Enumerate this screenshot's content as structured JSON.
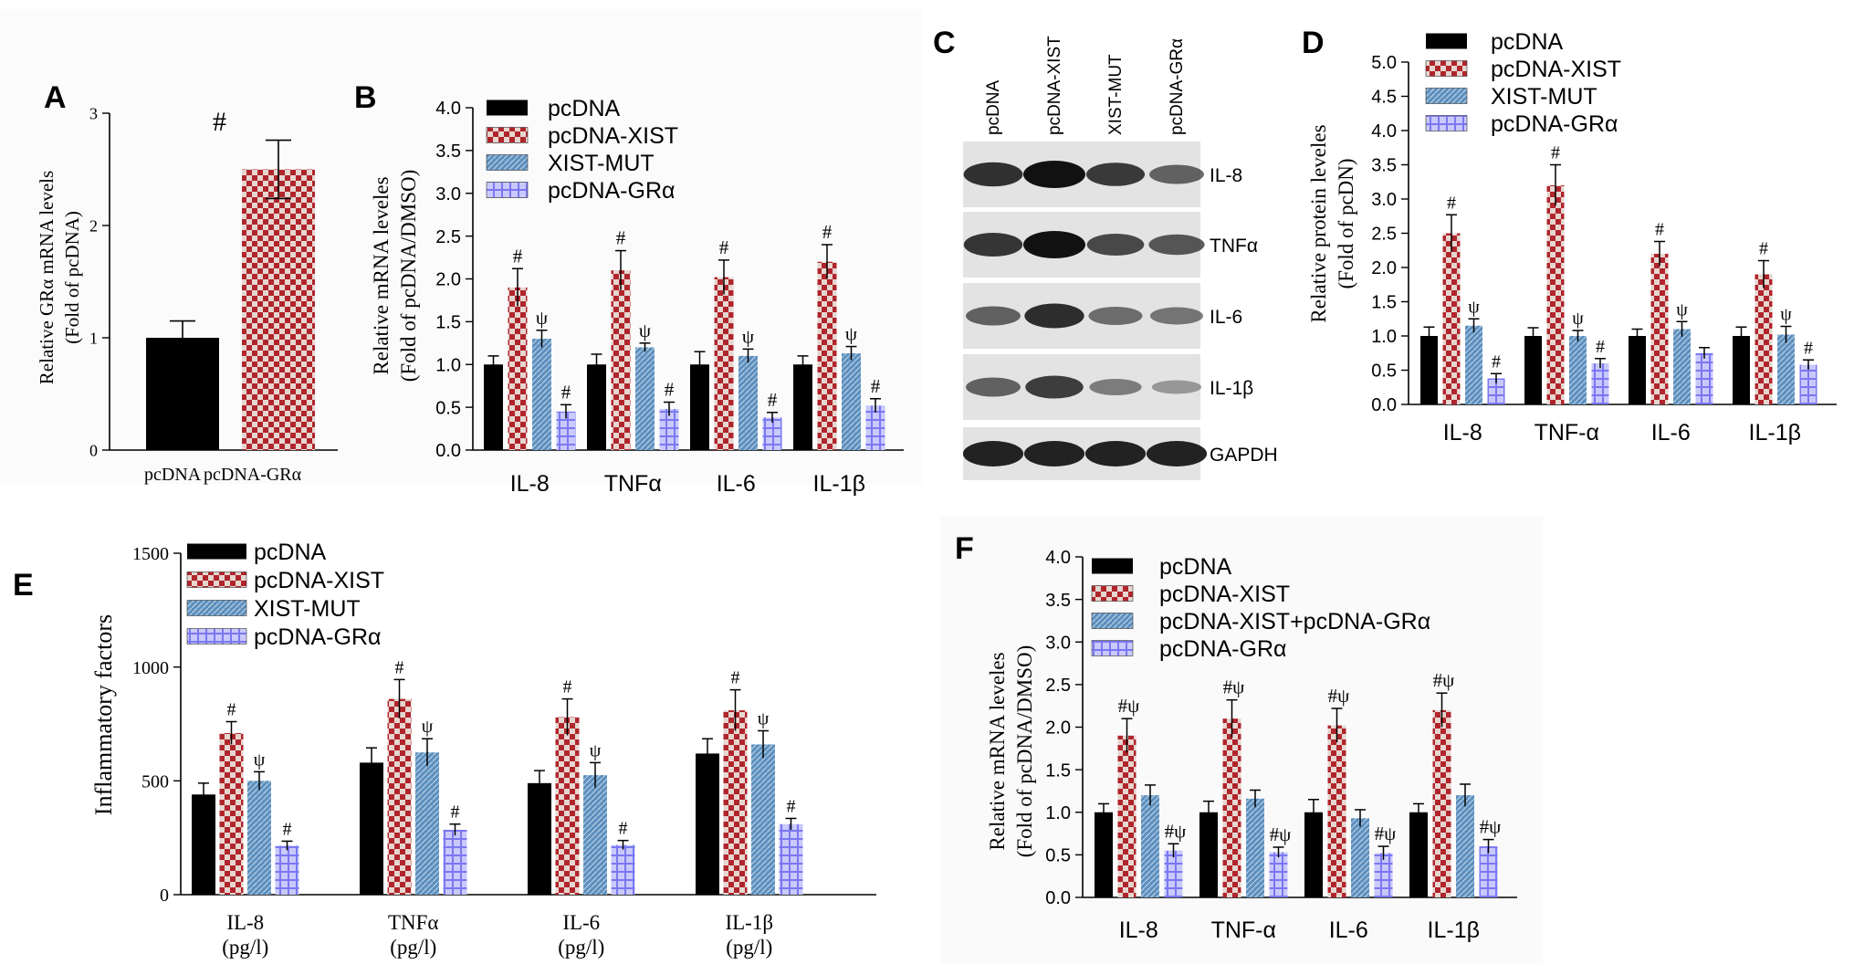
{
  "colors": {
    "pcdna": "#000000",
    "xist": "#b0252c",
    "xist_light": "#e6d6d0",
    "mut": "#5b8fbe",
    "mut_light": "#bcd0e4",
    "gra": "#7a78f2",
    "gra_light": "#c9c9fb",
    "combo": "#5b8fbe"
  },
  "panels": {
    "A": {
      "letter": "A",
      "ylabel_line1": "Relative GRα mRNA levels",
      "ylabel_line2": "(Fold of pcDNA)",
      "annotation": "#"
    },
    "B": {
      "letter": "B",
      "ylabel_line1": "Relative mRNA leveles",
      "ylabel_line2": "(Fold of pcDNA/DMSO)"
    },
    "C": {
      "letter": "C",
      "lanes": [
        "pcDNA",
        "pcDNA-XIST",
        "XIST-MUT",
        "pcDNA-GRα"
      ],
      "rows": [
        {
          "label": "IL-8",
          "intensity": [
            0.82,
            1.0,
            0.78,
            0.55
          ]
        },
        {
          "label": "TNFα",
          "intensity": [
            0.8,
            1.0,
            0.7,
            0.62
          ]
        },
        {
          "label": "IL-6",
          "intensity": [
            0.55,
            0.85,
            0.5,
            0.45
          ]
        },
        {
          "label": "IL-1β",
          "intensity": [
            0.55,
            0.75,
            0.4,
            0.25
          ]
        },
        {
          "label": "GAPDH",
          "intensity": [
            0.9,
            0.9,
            0.9,
            0.9
          ]
        }
      ]
    },
    "D": {
      "letter": "D",
      "ylabel_line1": "Relative protein leveles",
      "ylabel_line2": "(Fold of pcDN)"
    },
    "E": {
      "letter": "E",
      "ylabel_line1": "Inflammatory factors"
    },
    "F": {
      "letter": "F",
      "ylabel_line1": "Relative mRNA leveles",
      "ylabel_line2": "(Fold of pcDNA/DMSO)"
    }
  },
  "chart_data": [
    {
      "panel": "A",
      "type": "bar",
      "categories": [
        "pcDNA",
        "pcDNA-GRα"
      ],
      "series": [
        {
          "values": [
            1.0,
            2.5
          ],
          "errors": [
            0.15,
            0.26
          ]
        }
      ],
      "ylim": [
        0,
        3
      ],
      "yticks": [
        "0",
        "1",
        "2",
        "3"
      ],
      "ylabel": "Relative GRα mRNA levels (Fold of pcDNA)",
      "annotations": [
        "#"
      ]
    },
    {
      "panel": "B",
      "type": "bar",
      "categories": [
        "IL-8",
        "TNFα",
        "IL-6",
        "IL-1β"
      ],
      "series": [
        {
          "name": "pcDNA",
          "values": [
            1.0,
            1.0,
            1.0,
            1.0
          ],
          "errors": [
            0.1,
            0.12,
            0.15,
            0.1
          ],
          "marks": [
            "",
            "",
            "",
            ""
          ]
        },
        {
          "name": "pcDNA-XIST",
          "values": [
            1.9,
            2.1,
            2.02,
            2.2
          ],
          "errors": [
            0.22,
            0.23,
            0.2,
            0.2
          ],
          "marks": [
            "#",
            "#",
            "#",
            "#"
          ]
        },
        {
          "name": "XIST-MUT",
          "values": [
            1.3,
            1.2,
            1.1,
            1.13
          ],
          "errors": [
            0.1,
            0.05,
            0.08,
            0.08
          ],
          "marks": [
            "ψ",
            "ψ",
            "ψ",
            "ψ"
          ]
        },
        {
          "name": "pcDNA-GRα",
          "values": [
            0.45,
            0.48,
            0.38,
            0.52
          ],
          "errors": [
            0.08,
            0.08,
            0.06,
            0.08
          ],
          "marks": [
            "#",
            "#",
            "#",
            "#"
          ]
        }
      ],
      "ylim": [
        0,
        4
      ],
      "yticks": [
        "0.0",
        "0.5",
        "1.0",
        "1.5",
        "2.0",
        "2.5",
        "3.0",
        "3.5",
        "4.0"
      ],
      "ylabel": "Relative mRNA leveles (Fold of pcDNA/DMSO)"
    },
    {
      "panel": "D",
      "type": "bar",
      "categories": [
        "IL-8",
        "TNF-α",
        "IL-6",
        "IL-1β"
      ],
      "series": [
        {
          "name": "pcDNA",
          "values": [
            1.0,
            1.0,
            1.0,
            1.0
          ],
          "errors": [
            0.13,
            0.12,
            0.1,
            0.13
          ],
          "marks": [
            "",
            "",
            "",
            ""
          ]
        },
        {
          "name": "pcDNA-XIST",
          "values": [
            2.5,
            3.2,
            2.2,
            1.9
          ],
          "errors": [
            0.27,
            0.3,
            0.18,
            0.2
          ],
          "marks": [
            "#",
            "#",
            "#",
            "#"
          ]
        },
        {
          "name": "XIST-MUT",
          "values": [
            1.15,
            1.0,
            1.1,
            1.02
          ],
          "errors": [
            0.1,
            0.08,
            0.11,
            0.12
          ],
          "marks": [
            "ψ",
            "ψ",
            "ψ",
            "ψ"
          ]
        },
        {
          "name": "pcDNA-GRα",
          "values": [
            0.38,
            0.6,
            0.75,
            0.58
          ],
          "errors": [
            0.07,
            0.07,
            0.08,
            0.07
          ],
          "marks": [
            "#",
            "#",
            "",
            "#"
          ]
        }
      ],
      "ylim": [
        0,
        5
      ],
      "yticks": [
        "0.0",
        "0.5",
        "1.0",
        "1.5",
        "2.0",
        "2.5",
        "3.0",
        "3.5",
        "4.0",
        "4.5",
        "5.0"
      ],
      "ylabel": "Relative protein leveles (Fold of pcDN)"
    },
    {
      "panel": "E",
      "type": "bar",
      "categories": [
        "IL-8",
        "TNFα",
        "IL-6",
        "IL-1β"
      ],
      "category_units": [
        "(pg/l)",
        "(pg/l)",
        "(pg/l)",
        "(pg/l)"
      ],
      "series": [
        {
          "name": "pcDNA",
          "values": [
            440,
            580,
            490,
            620
          ],
          "errors": [
            50,
            65,
            55,
            65
          ],
          "marks": [
            "",
            "",
            "",
            ""
          ]
        },
        {
          "name": "pcDNA-XIST",
          "values": [
            710,
            860,
            780,
            810
          ],
          "errors": [
            50,
            85,
            80,
            90
          ],
          "marks": [
            "#",
            "#",
            "#",
            "#"
          ]
        },
        {
          "name": "XIST-MUT",
          "values": [
            500,
            625,
            525,
            660
          ],
          "errors": [
            40,
            60,
            55,
            60
          ],
          "marks": [
            "ψ",
            "ψ",
            "ψ",
            "ψ"
          ]
        },
        {
          "name": "pcDNA-GRα",
          "values": [
            215,
            285,
            218,
            310
          ],
          "errors": [
            20,
            25,
            20,
            25
          ],
          "marks": [
            "#",
            "#",
            "#",
            "#"
          ]
        }
      ],
      "ylim": [
        0,
        1500
      ],
      "yticks": [
        "0",
        "500",
        "1000",
        "1500"
      ],
      "ylabel": "Inflammatory factors"
    },
    {
      "panel": "F",
      "type": "bar",
      "categories": [
        "IL-8",
        "TNF-α",
        "IL-6",
        "IL-1β"
      ],
      "series": [
        {
          "name": "pcDNA",
          "values": [
            1.0,
            1.0,
            1.0,
            1.0
          ],
          "errors": [
            0.1,
            0.13,
            0.15,
            0.1
          ],
          "marks": [
            "",
            "",
            "",
            ""
          ]
        },
        {
          "name": "pcDNA-XIST",
          "values": [
            1.9,
            2.1,
            2.02,
            2.2
          ],
          "errors": [
            0.2,
            0.22,
            0.2,
            0.2
          ],
          "marks": [
            "#ψ",
            "#ψ",
            "#ψ",
            "#ψ"
          ]
        },
        {
          "name": "pcDNA-XIST+pcDNA-GRα",
          "values": [
            1.2,
            1.16,
            0.93,
            1.2
          ],
          "errors": [
            0.12,
            0.1,
            0.1,
            0.13
          ],
          "marks": [
            "",
            "",
            "",
            ""
          ]
        },
        {
          "name": "pcDNA-GRα",
          "values": [
            0.55,
            0.53,
            0.52,
            0.6
          ],
          "errors": [
            0.08,
            0.06,
            0.08,
            0.08
          ],
          "marks": [
            "#ψ",
            "#ψ",
            "#ψ",
            "#ψ"
          ]
        }
      ],
      "ylim": [
        0,
        4
      ],
      "yticks": [
        "0.0",
        "0.5",
        "1.0",
        "1.5",
        "2.0",
        "2.5",
        "3.0",
        "3.5",
        "4.0"
      ],
      "ylabel": "Relative mRNA leveles (Fold of pcDNA/DMSO)"
    }
  ]
}
